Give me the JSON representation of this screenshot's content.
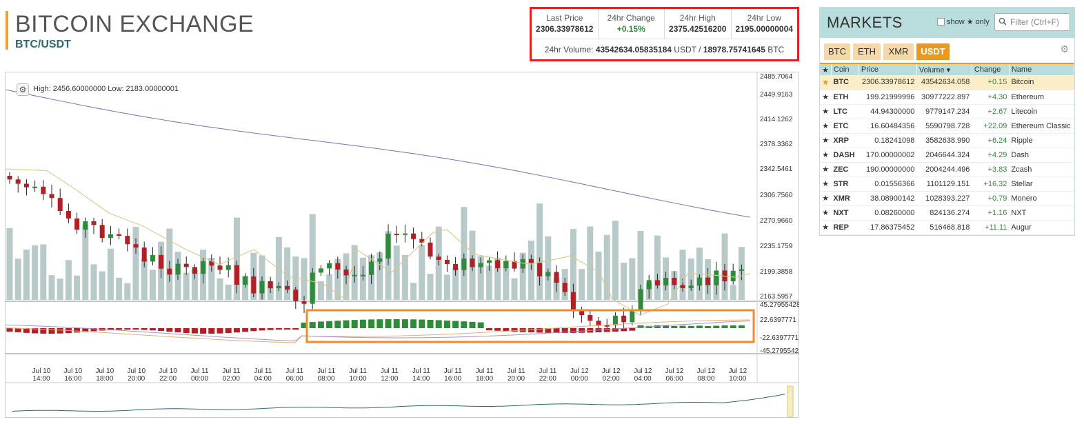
{
  "header": {
    "title": "BITCOIN EXCHANGE",
    "pair": "BTC/USDT"
  },
  "stats": {
    "last_price_label": "Last Price",
    "last_price": "2306.33978612",
    "change_label": "24hr Change",
    "change": "+0.15%",
    "high_label": "24hr High",
    "high": "2375.42516200",
    "low_label": "24hr Low",
    "low": "2195.00000004",
    "volume_label": "24hr Volume:",
    "volume_usdt": "43542634.05835184",
    "usdt": "USDT",
    "sep": "/",
    "volume_btc": "18978.75741645",
    "btc": "BTC"
  },
  "chart": {
    "gear_icon": "gear-icon",
    "readout": "High: 2456.60000000  Low: 2183.00000001",
    "price_ticks": [
      "2485.7064",
      "2449.9163",
      "2414.1262",
      "2378.3362",
      "2342.5461",
      "2306.7560",
      "2270.9660",
      "2235.1759",
      "2199.3858",
      "2163.5957"
    ],
    "macd_ticks": [
      "45.27955428",
      "22.6397771",
      "-22.6397771",
      "-45.2795542"
    ],
    "time_ticks": [
      {
        "d": "Jul 10",
        "t": "14:00"
      },
      {
        "d": "Jul 10",
        "t": "16:00"
      },
      {
        "d": "Jul 10",
        "t": "18:00"
      },
      {
        "d": "Jul 10",
        "t": "20:00"
      },
      {
        "d": "Jul 10",
        "t": "22:00"
      },
      {
        "d": "Jul 11",
        "t": "00:00"
      },
      {
        "d": "Jul 11",
        "t": "02:00"
      },
      {
        "d": "Jul 11",
        "t": "04:00"
      },
      {
        "d": "Jul 11",
        "t": "06:00"
      },
      {
        "d": "Jul 11",
        "t": "08:00"
      },
      {
        "d": "Jul 11",
        "t": "10:00"
      },
      {
        "d": "Jul 11",
        "t": "12:00"
      },
      {
        "d": "Jul 11",
        "t": "14:00"
      },
      {
        "d": "Jul 11",
        "t": "16:00"
      },
      {
        "d": "Jul 11",
        "t": "18:00"
      },
      {
        "d": "Jul 11",
        "t": "20:00"
      },
      {
        "d": "Jul 11",
        "t": "22:00"
      },
      {
        "d": "Jul 12",
        "t": "00:00"
      },
      {
        "d": "Jul 12",
        "t": "02:00"
      },
      {
        "d": "Jul 12",
        "t": "04:00"
      },
      {
        "d": "Jul 12",
        "t": "06:00"
      },
      {
        "d": "Jul 12",
        "t": "08:00"
      },
      {
        "d": "Jul 12",
        "t": "10:00"
      }
    ],
    "colors": {
      "up": "#2e8b3a",
      "down": "#b21f24",
      "volume": "#b8c9c9",
      "ma_long": "#7a7fc0",
      "ma_short": "#d7c98a",
      "highlight": "#f28a2e"
    }
  },
  "markets": {
    "title": "MARKETS",
    "show_label": "show",
    "only_label": "only",
    "filter_placeholder": "Filter (Ctrl+F)",
    "tabs": [
      "BTC",
      "ETH",
      "XMR",
      "USDT"
    ],
    "active_tab": "USDT",
    "columns": [
      "Coin",
      "Price",
      "Volume ▾",
      "Change",
      "Name"
    ],
    "rows": [
      {
        "coin": "BTC",
        "price": "2306.33978612",
        "volume": "43542634.058",
        "change": "+0.15",
        "name": "Bitcoin",
        "selected": true
      },
      {
        "coin": "ETH",
        "price": "199.21999996",
        "volume": "30977222.897",
        "change": "+4.30",
        "name": "Ethereum"
      },
      {
        "coin": "LTC",
        "price": "44.94300000",
        "volume": "9779147.234",
        "change": "+2.67",
        "name": "Litecoin"
      },
      {
        "coin": "ETC",
        "price": "16.60484356",
        "volume": "5590798.728",
        "change": "+22.09",
        "name": "Ethereum Classic"
      },
      {
        "coin": "XRP",
        "price": "0.18241098",
        "volume": "3582638.990",
        "change": "+6.24",
        "name": "Ripple"
      },
      {
        "coin": "DASH",
        "price": "170.00000002",
        "volume": "2046644.324",
        "change": "+4.29",
        "name": "Dash"
      },
      {
        "coin": "ZEC",
        "price": "190.00000000",
        "volume": "2004244.496",
        "change": "+3.83",
        "name": "Zcash"
      },
      {
        "coin": "STR",
        "price": "0.01556366",
        "volume": "1101129.151",
        "change": "+16.32",
        "name": "Stellar"
      },
      {
        "coin": "XMR",
        "price": "38.08900142",
        "volume": "1028393.227",
        "change": "+0.79",
        "name": "Monero"
      },
      {
        "coin": "NXT",
        "price": "0.08260000",
        "volume": "824136.274",
        "change": "+1.16",
        "name": "NXT"
      },
      {
        "coin": "REP",
        "price": "17.86375452",
        "volume": "516468.818",
        "change": "+11.11",
        "name": "Augur"
      }
    ]
  }
}
